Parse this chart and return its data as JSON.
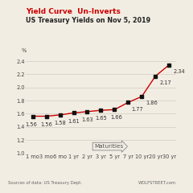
{
  "title_red": "Yield Curve  Un-Inverts",
  "title_black": "US Treasury Yields on Nov 5, 2019",
  "ylabel": "%",
  "source_left": "Sources of data: US Treasury Dept.",
  "source_right": "WOLFSTREET.com",
  "categories": [
    "1 mo",
    "3 mo",
    "6 mo",
    "1 yr",
    "2 yr",
    "3 yr",
    "5 yr",
    "7 yr",
    "10 yr",
    "20 yr",
    "30 yr"
  ],
  "values": [
    1.56,
    1.56,
    1.58,
    1.61,
    1.63,
    1.65,
    1.66,
    1.77,
    1.86,
    2.17,
    2.34
  ],
  "labels": [
    "1.56",
    "1.56",
    "1.58",
    "1.61",
    "1.63",
    "1.65",
    "1.66",
    "1.77",
    "1.86",
    "2.17",
    "2.34"
  ],
  "line_color": "#cc0000",
  "marker_color": "#111111",
  "bg_color": "#f2ede3",
  "ylim": [
    1.0,
    2.5
  ],
  "yticks": [
    1.0,
    1.2,
    1.4,
    1.6,
    1.8,
    2.0,
    2.2,
    2.4
  ],
  "grid_color": "#d0ccc0",
  "arrow_label": "Maturities",
  "title_red_color": "#cc0000",
  "title_black_color": "#222222",
  "label_fontsize": 4.8,
  "tick_fontsize": 4.8,
  "source_fontsize": 3.8
}
